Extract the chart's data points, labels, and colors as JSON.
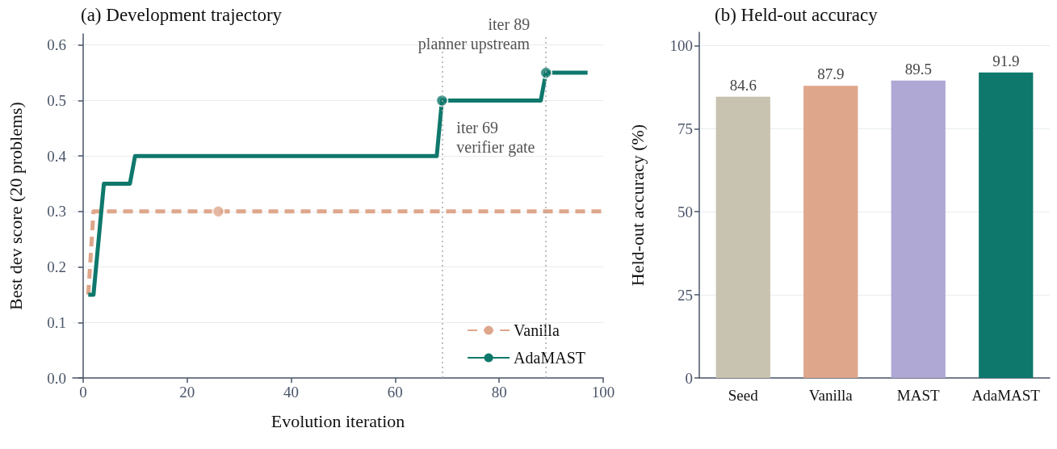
{
  "chart_data": [
    {
      "type": "line",
      "title": "(a) Development trajectory",
      "xlabel": "Evolution iteration",
      "ylabel": "Best dev score (20 problems)",
      "xlim": [
        -2,
        100
      ],
      "xticks": [
        0,
        20,
        40,
        60,
        80,
        100
      ],
      "ylim": [
        0,
        0.62
      ],
      "yticks": [
        {
          "value": 0,
          "label": "0.0"
        },
        0.1,
        0.2,
        0.3,
        0.4,
        0.5,
        0.6
      ],
      "grid": "y",
      "legend": "bottom right",
      "series": [
        {
          "name": "Vanilla",
          "color": "#dea68b",
          "line_style": "dashed",
          "x": [
            1,
            2,
            100
          ],
          "values": [
            0.15,
            0.3,
            0.3
          ]
        },
        {
          "name": "AdaMAST",
          "color": "#0f786c",
          "line_style": "solid",
          "x": [
            1,
            2,
            4,
            9,
            10,
            68,
            69,
            88,
            89,
            97
          ],
          "values": [
            0.15,
            0.15,
            0.35,
            0.35,
            0.4,
            0.4,
            0.5,
            0.5,
            0.55,
            0.55
          ]
        },
        {
          "type": "scatter",
          "color": "#dea68b",
          "marker": "circle",
          "x": [
            26
          ],
          "values": [
            0.3
          ]
        },
        {
          "type": "scatter",
          "color": "#0f786c",
          "marker": "circle",
          "x": [
            69,
            89
          ],
          "values": [
            0.5,
            0.55
          ]
        }
      ],
      "ref_lines": [
        {
          "axis": "x",
          "value": 69,
          "color": "#aaaaaa",
          "line_style": "dotted"
        },
        {
          "axis": "x",
          "value": 89,
          "color": "#aaaaaa",
          "line_style": "dotted"
        }
      ],
      "annotations": [
        {
          "text": "iter 69\nverifier gate",
          "x": 69,
          "y": 0.5
        },
        {
          "text": "iter 89\nplanner upstream",
          "x": 89,
          "y": 0.55
        }
      ]
    },
    {
      "type": "bar",
      "title": "(b) Held-out accuracy",
      "ylabel": "Held-out accuracy (%)",
      "categories": [
        "Seed",
        "Vanilla",
        "MAST",
        "AdaMAST"
      ],
      "values": [
        84.6,
        87.9,
        89.5,
        91.9
      ],
      "colors": [
        "#c8c2b0",
        "#dea68b",
        "#afa7d4",
        "#0f786c"
      ],
      "ylim": [
        0,
        104
      ],
      "yticks": [
        0,
        25,
        50,
        75,
        100
      ],
      "grid": "y",
      "data_labels": true
    }
  ]
}
